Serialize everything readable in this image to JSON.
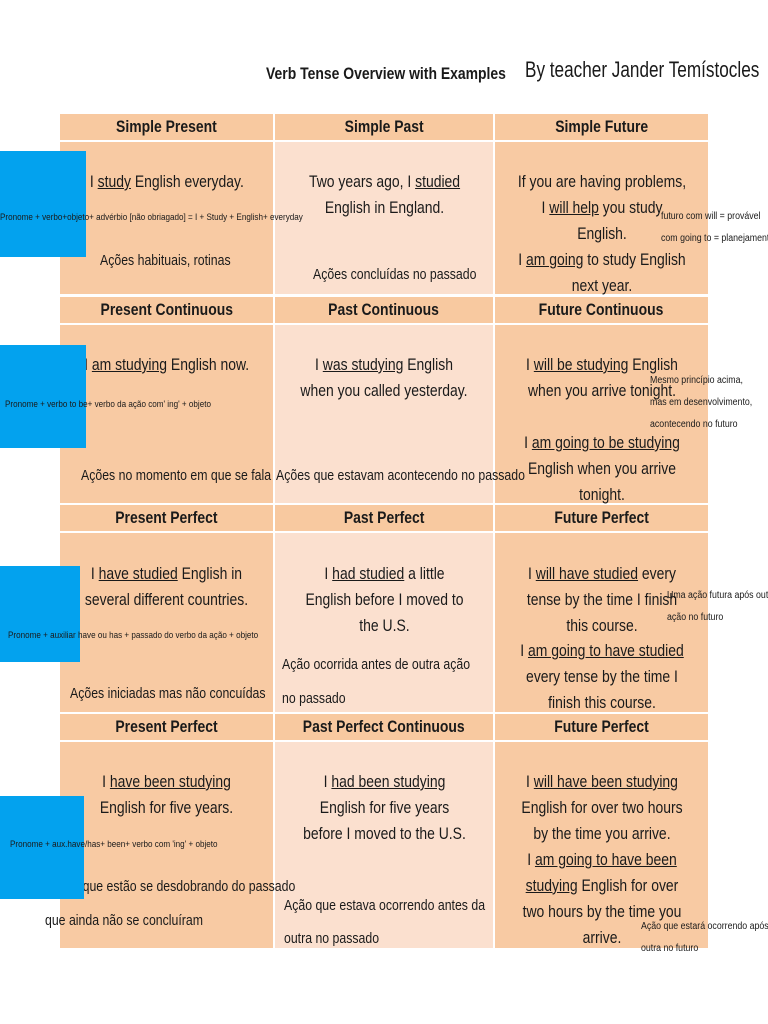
{
  "header": {
    "title": "Verb Tense Overview with Examples",
    "author": "By teacher Jander Temístocles"
  },
  "columns": [
    "Simple Present",
    "Simple Past",
    "Simple Future"
  ],
  "rows": {
    "simple": {
      "headers": [
        "Simple Present",
        "Simple Past",
        "Simple Future"
      ],
      "present": {
        "pre": "I ",
        "verb": "study",
        "post": " English everyday."
      },
      "present_note": "Ações habituais, rotinas",
      "present_formula": "Pronome + verbo+objeto+ advérbio [não obriagado] = I + Study + English+ everyday",
      "past": {
        "pre": "Two years ago, I ",
        "verb": "studied",
        "post": " English in England."
      },
      "past_note": "Ações concluídas no passado",
      "future1": {
        "pre": "If you are having problems, I ",
        "verb": "will help",
        "post": " you study English."
      },
      "future2": {
        "pre": "I ",
        "verb": "am going",
        "post": " to study English next year."
      },
      "future_note1": "futuro com will = provável",
      "future_note2": "com going to = planejamento"
    },
    "continuous": {
      "headers": [
        "Present Continuous",
        "Past Continuous",
        "Future Continuous"
      ],
      "present": {
        "pre": "I ",
        "verb": "am studying",
        "post": " English now."
      },
      "present_note": "Ações no momento em que se fala",
      "present_formula": "Pronome + verbo to be+ verbo da ação com' ing' + objeto",
      "past": {
        "pre": "I ",
        "verb": "was studying",
        "post": " English when you called yesterday."
      },
      "past_note": "Ações que estavam acontecendo no passado",
      "future1": {
        "pre": "I ",
        "verb": "will be studying",
        "post": " English when you arrive tonight."
      },
      "future2": {
        "pre": "I ",
        "verb": "am going to be studying",
        "post": " English when you arrive tonight."
      },
      "future_note1": "Mesmo princípio acima,",
      "future_note2": "mas em desenvolvimento,",
      "future_note3": "acontecendo no futuro"
    },
    "perfect": {
      "headers": [
        "Present Perfect",
        "Past Perfect",
        "Future Perfect"
      ],
      "present": {
        "pre": "I ",
        "verb": "have studied",
        "post": " English in several different countries."
      },
      "present_note": "Ações iniciadas mas não concuídas",
      "present_formula": "Pronome + auxiliar have ou has + passado do verbo da ação + objeto",
      "past": {
        "pre": "I ",
        "verb": "had studied",
        "post": " a little English before I moved to the U.S."
      },
      "past_note1": "Ação ocorrida antes de outra ação",
      "past_note2": "no passado",
      "future1": {
        "pre": "I ",
        "verb": "will have studied",
        "post": " every tense by the time I finish this course."
      },
      "future2": {
        "pre": "I ",
        "verb": "am going to have studied",
        "post": " every tense by the time I finish this course."
      },
      "future_note1": "Uma ação futura após outra",
      "future_note2": "ação no futuro"
    },
    "perfect_continuous": {
      "headers": [
        "Present Perfect Continuous",
        "Past Perfect Continuous",
        "Future Perfect Continuous"
      ],
      "present": {
        "pre": "I ",
        "verb": "have been studying",
        "post": " English for five years."
      },
      "present_note1": "Ações que estão se desdobrando do passado",
      "present_note2": "que ainda não se concluíram",
      "present_formula": "Pronome + aux.have/has+ been+ verbo com 'ing' + objeto",
      "past": {
        "pre": "I ",
        "verb": "had been studying",
        "post": " English for five years before I moved to the U.S."
      },
      "past_note1": "Ação que estava ocorrendo antes da",
      "past_note2": "outra no passado",
      "future1": {
        "pre": "I ",
        "verb": "will have been studying",
        "post": " English for over two hours by the time you arrive."
      },
      "future2": {
        "pre": "I ",
        "verb": "am going to have been studying",
        "post": " English for over two hours by the time you arrive."
      },
      "future_note1": "Ação que estará ocorrendo após a",
      "future_note2": "outra no futuro"
    }
  }
}
